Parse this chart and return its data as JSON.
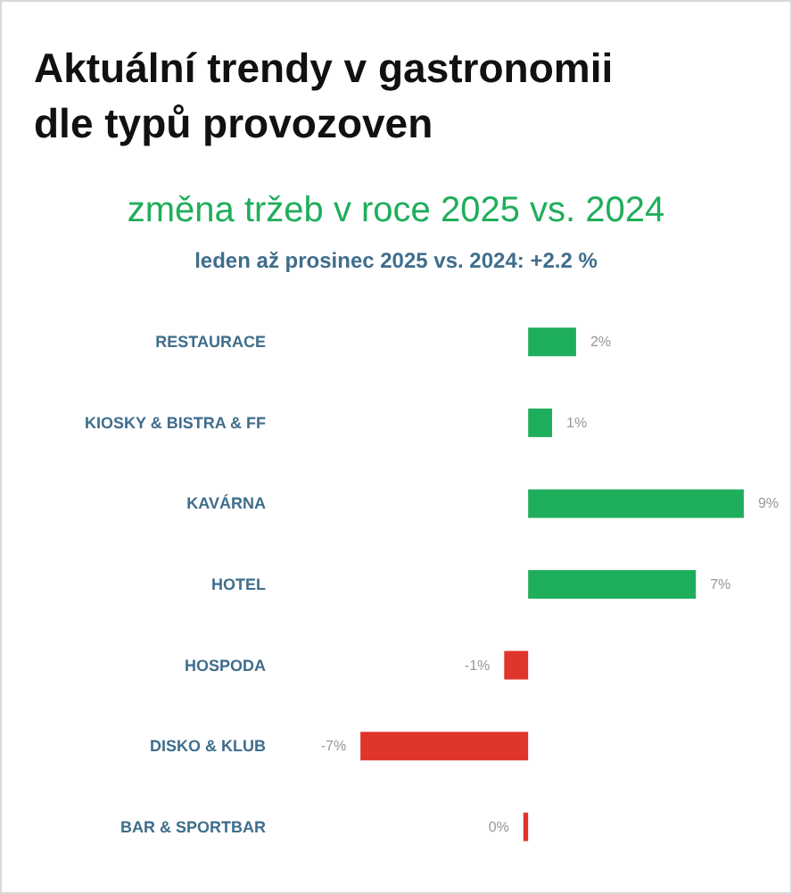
{
  "chart_data": {
    "type": "bar",
    "orientation": "horizontal",
    "title": "Aktuální trendy v gastronomii dle typů provozoven",
    "subtitle": "změna tržeb v roce 2025 vs. 2024",
    "annotations": [
      "leden až prosinec 2025 vs. 2024: +2.2 %"
    ],
    "categories": [
      "RESTAURACE",
      "KIOSKY & BISTRA & FF",
      "KAVÁRNA",
      "HOTEL",
      "HOSPODA",
      "DISKO & KLUB",
      "BAR & SPORTBAR"
    ],
    "values": [
      2,
      1,
      9,
      7,
      -1,
      -7,
      -0.2
    ],
    "colors": [
      "#1fae5b",
      "#1fae5b",
      "#1fae5b",
      "#1fae5b",
      "#e0352b",
      "#e0352b",
      "#e0352b"
    ],
    "value_labels": [
      "2%",
      "1%",
      "9%",
      "7%",
      "-1%",
      "-7%",
      "0%"
    ]
  }
}
